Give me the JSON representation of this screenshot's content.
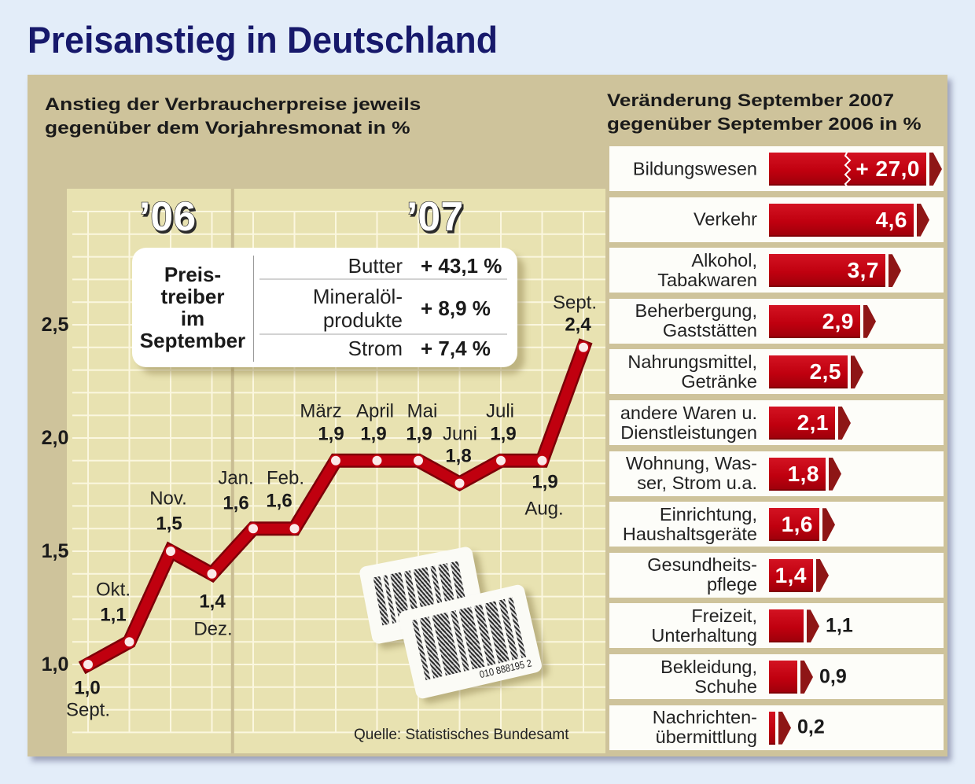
{
  "page": {
    "title": "Preisanstieg in Deutschland"
  },
  "colors": {
    "page_bg": "#e3edf9",
    "title": "#17196b",
    "frame": "#cec39b",
    "plot_bg": "#e8e2b1",
    "grid": "#fbf7df",
    "divider": "#c9bd93",
    "line": "#c0000f",
    "line_outline": "#7d0008",
    "marker_fill": "#fbe9e9",
    "bar": "#c0000f",
    "arrow": "#8e1616"
  },
  "chart_data": [
    {
      "type": "line",
      "title_lines": [
        "Anstieg der Verbraucherpreise jeweils",
        "gegenüber dem Vorjahresmonat in %"
      ],
      "year_labels": [
        "’06",
        "’07"
      ],
      "categories": [
        "Sept.",
        "Okt.",
        "Nov.",
        "Dez.",
        "Jan.",
        "Feb.",
        "März",
        "April",
        "Mai",
        "Juni",
        "Juli",
        "Aug.",
        "Sept."
      ],
      "values": [
        1.0,
        1.1,
        1.5,
        1.4,
        1.6,
        1.6,
        1.9,
        1.9,
        1.9,
        1.8,
        1.9,
        1.9,
        2.4
      ],
      "value_labels": [
        "1,0",
        "1,1",
        "1,5",
        "1,4",
        "1,6",
        "1,6",
        "1,9",
        "1,9",
        "1,9",
        "1,8",
        "1,9",
        "1,9",
        "2,4"
      ],
      "yticks": [
        1.0,
        1.5,
        2.0,
        2.5
      ],
      "ytick_labels": [
        "1,0",
        "1,5",
        "2,0",
        "2,5"
      ],
      "ylim": [
        0.7,
        3.0
      ],
      "grid": true,
      "xlabel": "",
      "ylabel": "",
      "source": "Quelle: Statistisches Bundesamt",
      "callout": {
        "title_lines": [
          "Preis-",
          "treiber",
          "im",
          "September"
        ],
        "items": [
          {
            "label_lines": [
              "Butter"
            ],
            "value": "+ 43,1 %"
          },
          {
            "label_lines": [
              "Mineralöl-",
              "produkte"
            ],
            "value": "+ 8,9 %"
          },
          {
            "label_lines": [
              "Strom"
            ],
            "value": "+ 7,4 %"
          }
        ]
      },
      "decoration": {
        "barcode_number": "010 888195 2"
      }
    },
    {
      "type": "bar",
      "orientation": "horizontal",
      "title_lines": [
        "Veränderung September 2007",
        "gegenüber September 2006 in %"
      ],
      "categories": [
        [
          "Bildungswesen"
        ],
        [
          "Verkehr"
        ],
        [
          "Alkohol,",
          "Tabakwaren"
        ],
        [
          "Beherbergung,",
          "Gaststätten"
        ],
        [
          "Nahrungsmittel,",
          "Getränke"
        ],
        [
          "andere Waren u.",
          "Dienstleistungen"
        ],
        [
          "Wohnung, Was-",
          "ser, Strom u.a."
        ],
        [
          "Einrichtung,",
          "Haushaltsgeräte"
        ],
        [
          "Gesundheits-",
          "pflege"
        ],
        [
          "Freizeit,",
          "Unterhaltung"
        ],
        [
          "Bekleidung,",
          "Schuhe"
        ],
        [
          "Nachrichten-",
          "übermittlung"
        ]
      ],
      "values": [
        27.0,
        4.6,
        3.7,
        2.9,
        2.5,
        2.1,
        1.8,
        1.6,
        1.4,
        1.1,
        0.9,
        0.2
      ],
      "value_labels": [
        "+ 27,0",
        "4,6",
        "3,7",
        "2,9",
        "2,5",
        "2,1",
        "1,8",
        "1,6",
        "1,4",
        "1,1",
        "0,9",
        "0,2"
      ],
      "broken": [
        true,
        false,
        false,
        false,
        false,
        false,
        false,
        false,
        false,
        false,
        false,
        false
      ],
      "xlabel": "",
      "ylabel": ""
    }
  ]
}
